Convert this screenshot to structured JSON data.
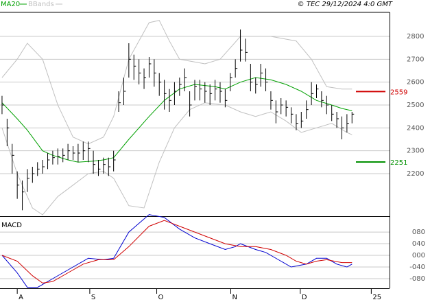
{
  "header": {
    "source": "© TEC 29/12/2024 4:0 GMT"
  },
  "chart_data": [
    {
      "type": "ohlc",
      "close": [
        2500,
        2400,
        2280,
        2150,
        2120,
        2180,
        2200,
        2220,
        2230,
        2260,
        2270,
        2275,
        2280,
        2300,
        2290,
        2290,
        2300,
        2310,
        2240,
        2220,
        2240,
        2230,
        2260,
        2510,
        2560,
        2700,
        2670,
        2640,
        2620,
        2680,
        2640,
        2600,
        2550,
        2520,
        2560,
        2590,
        2620,
        2500,
        2580,
        2570,
        2560,
        2550,
        2570,
        2560,
        2520,
        2620,
        2660,
        2740,
        2730,
        2600,
        2590,
        2640,
        2600,
        2520,
        2470,
        2500,
        2490,
        2460,
        2420,
        2430,
        2480,
        2550,
        2570,
        2520,
        2500,
        2460,
        2440,
        2400,
        2420,
        2460
      ],
      "high": [
        2540,
        2440,
        2330,
        2210,
        2170,
        2220,
        2230,
        2250,
        2260,
        2290,
        2300,
        2310,
        2310,
        2330,
        2320,
        2330,
        2340,
        2340,
        2300,
        2260,
        2270,
        2270,
        2300,
        2560,
        2620,
        2770,
        2720,
        2700,
        2660,
        2710,
        2700,
        2640,
        2610,
        2570,
        2600,
        2620,
        2660,
        2560,
        2610,
        2610,
        2600,
        2590,
        2610,
        2600,
        2570,
        2640,
        2700,
        2830,
        2790,
        2680,
        2620,
        2680,
        2660,
        2560,
        2520,
        2530,
        2520,
        2490,
        2460,
        2470,
        2520,
        2600,
        2590,
        2560,
        2540,
        2500,
        2470,
        2450,
        2460,
        2470
      ],
      "low": [
        2460,
        2320,
        2200,
        2090,
        2040,
        2120,
        2160,
        2190,
        2200,
        2220,
        2240,
        2240,
        2250,
        2260,
        2260,
        2250,
        2260,
        2250,
        2200,
        2190,
        2200,
        2190,
        2210,
        2470,
        2500,
        2620,
        2610,
        2590,
        2570,
        2620,
        2580,
        2540,
        2480,
        2470,
        2500,
        2540,
        2560,
        2450,
        2520,
        2520,
        2510,
        2500,
        2520,
        2510,
        2490,
        2560,
        2620,
        2690,
        2690,
        2560,
        2550,
        2580,
        2560,
        2480,
        2420,
        2460,
        2450,
        2420,
        2390,
        2400,
        2440,
        2500,
        2530,
        2490,
        2460,
        2430,
        2400,
        2350,
        2380,
        2420
      ],
      "bar_color": "#000000",
      "series": [
        {
          "name": "MA20",
          "color": "#00a000",
          "x": [
            0,
            3,
            5,
            8,
            10,
            13,
            15,
            18,
            20,
            22,
            25,
            29,
            32,
            35,
            38,
            42,
            44,
            47,
            50,
            53,
            56,
            59,
            62,
            65,
            67,
            69
          ],
          "values": [
            2510,
            2440,
            2390,
            2300,
            2280,
            2260,
            2250,
            2255,
            2260,
            2270,
            2350,
            2450,
            2520,
            2570,
            2590,
            2580,
            2570,
            2600,
            2620,
            2610,
            2590,
            2560,
            2520,
            2500,
            2485,
            2475
          ]
        },
        {
          "name": "BBands",
          "color": "#c0c0c0",
          "x": [
            0,
            3,
            5,
            8,
            11,
            14,
            17,
            20,
            22,
            25,
            29,
            31,
            33,
            35,
            40,
            43,
            47,
            53,
            58,
            61,
            64,
            67,
            69
          ],
          "values": [
            2620,
            2700,
            2770,
            2700,
            2500,
            2360,
            2330,
            2360,
            2450,
            2700,
            2860,
            2870,
            2780,
            2700,
            2680,
            2700,
            2800,
            2800,
            2780,
            2700,
            2580,
            2570,
            2570
          ]
        },
        {
          "color": "#c0c0c0",
          "x": [
            0,
            3,
            6,
            8,
            11,
            14,
            17,
            20,
            22,
            25,
            28,
            31,
            34,
            37,
            40,
            44,
            47,
            50,
            53,
            56,
            59,
            62,
            65,
            68,
            69
          ],
          "values": [
            2400,
            2200,
            2050,
            2020,
            2100,
            2150,
            2200,
            2210,
            2180,
            2060,
            2050,
            2250,
            2400,
            2480,
            2510,
            2500,
            2470,
            2450,
            2470,
            2430,
            2380,
            2400,
            2420,
            2380,
            2370
          ]
        }
      ],
      "levels": [
        {
          "value": 2559,
          "color": "#d00000"
        },
        {
          "value": 2251,
          "color": "#009000"
        }
      ],
      "xlim": [
        -0.4,
        76.4
      ],
      "ylim": [
        2014,
        2905
      ],
      "yticks": [
        2200,
        2300,
        2400,
        2500,
        2600,
        2700,
        2800
      ],
      "grid": true
    },
    {
      "type": "line",
      "title": "MACD",
      "series": [
        {
          "color": "#0000d0",
          "x": [
            0,
            3,
            5,
            7,
            10,
            14,
            17,
            20,
            22,
            25,
            29,
            32,
            35,
            38,
            41,
            44,
            46,
            47,
            50,
            52,
            55,
            57,
            60,
            62,
            64,
            66,
            68,
            69
          ],
          "values": [
            0,
            -60,
            -110,
            -110,
            -80,
            -40,
            -10,
            -15,
            -10,
            80,
            140,
            130,
            90,
            60,
            40,
            20,
            30,
            40,
            20,
            10,
            -20,
            -40,
            -30,
            -10,
            -10,
            -30,
            -40,
            -30
          ]
        },
        {
          "color": "#d00000",
          "x": [
            0,
            3,
            6,
            8,
            10,
            13,
            16,
            19,
            22,
            25,
            29,
            32,
            35,
            38,
            41,
            44,
            47,
            50,
            53,
            56,
            58,
            60,
            62,
            64,
            67,
            69
          ],
          "values": [
            0,
            -20,
            -70,
            -95,
            -90,
            -60,
            -30,
            -15,
            -15,
            30,
            100,
            120,
            100,
            80,
            60,
            40,
            30,
            30,
            20,
            0,
            -20,
            -30,
            -20,
            -15,
            -25,
            -25
          ]
        }
      ],
      "xlim": [
        -0.4,
        76.4
      ],
      "ylim": [
        -113,
        132
      ],
      "yticks": [
        {
          "value": 80,
          "label": "080"
        },
        {
          "value": 40,
          "label": "040"
        },
        {
          "value": 0,
          "label": "000"
        },
        {
          "value": -40,
          "label": "-040"
        },
        {
          "value": -80,
          "label": "-080"
        }
      ],
      "xticks": [
        {
          "value": 3,
          "label": "A"
        },
        {
          "value": 17.3,
          "label": "S"
        },
        {
          "value": 30.5,
          "label": "O"
        },
        {
          "value": 45.1,
          "label": "N"
        },
        {
          "value": 58.8,
          "label": "D"
        },
        {
          "value": 72.8,
          "label": "25"
        }
      ],
      "grid": true
    }
  ]
}
